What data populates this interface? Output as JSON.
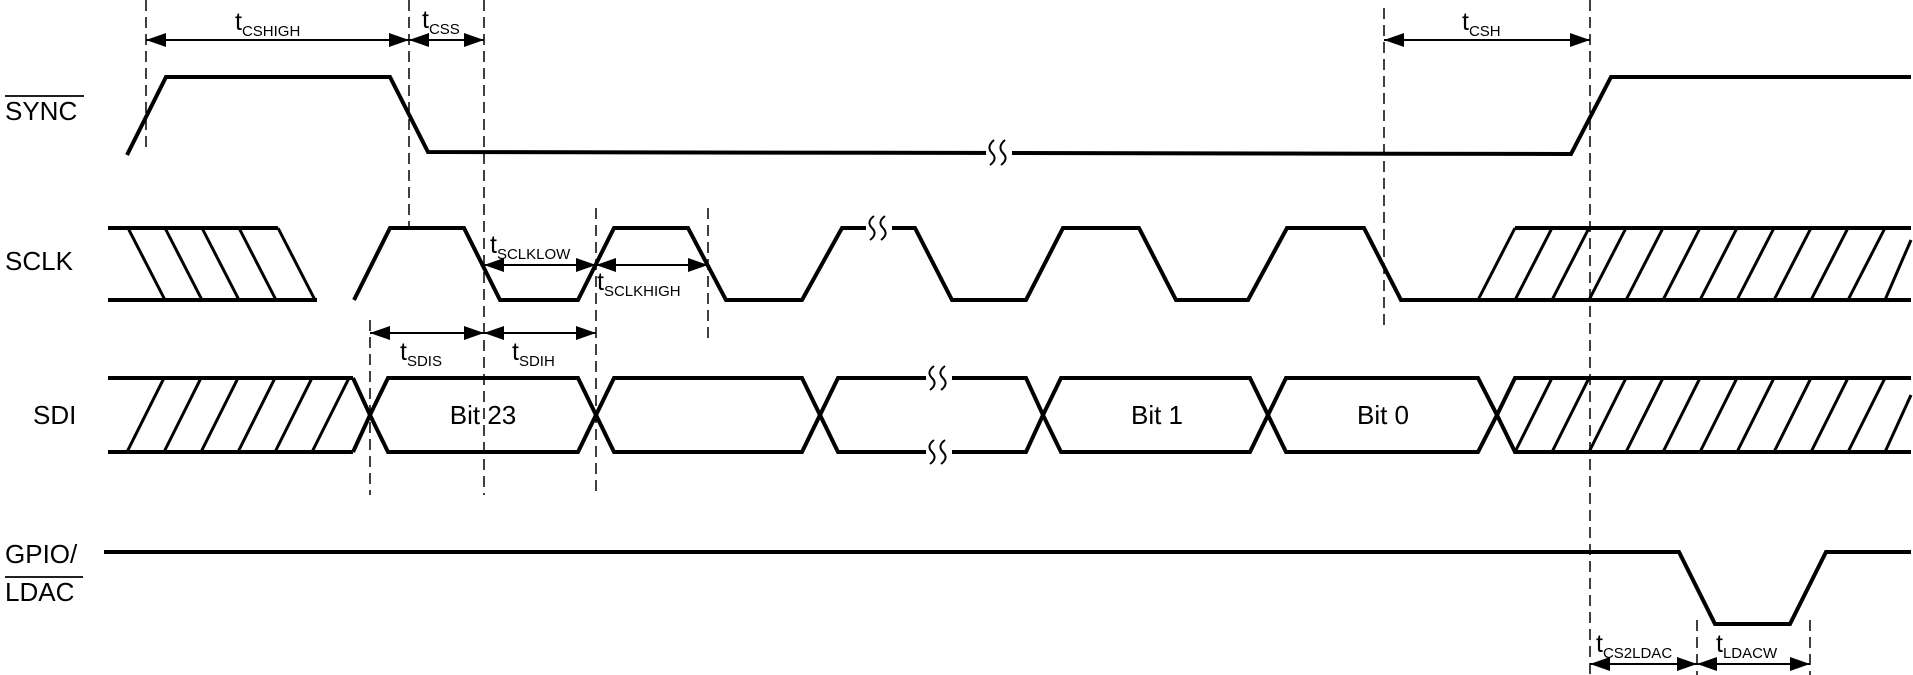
{
  "signals": {
    "sync": "SYNC",
    "sclk": "SCLK",
    "sdi": "SDI",
    "gpio_line1": "GPIO/",
    "gpio_line2": "LDAC"
  },
  "bits": {
    "first": "Bit 23",
    "second_last": "Bit 1",
    "last": "Bit 0"
  },
  "timing": {
    "cshigh": {
      "base": "t",
      "sub": "CSHIGH"
    },
    "css": {
      "base": "t",
      "sub": "CSS"
    },
    "csh": {
      "base": "t",
      "sub": "CSH"
    },
    "sclklow": {
      "base": "t",
      "sub": "SCLKLOW"
    },
    "sclkhigh": {
      "base": "t",
      "sub": "SCLKHIGH"
    },
    "sdis": {
      "base": "t",
      "sub": "SDIS"
    },
    "sdih": {
      "base": "t",
      "sub": "SDIH"
    },
    "cs2ldac": {
      "base": "t",
      "sub": "CS2LDAC"
    },
    "ldacw": {
      "base": "t",
      "sub": "LDACW"
    }
  }
}
